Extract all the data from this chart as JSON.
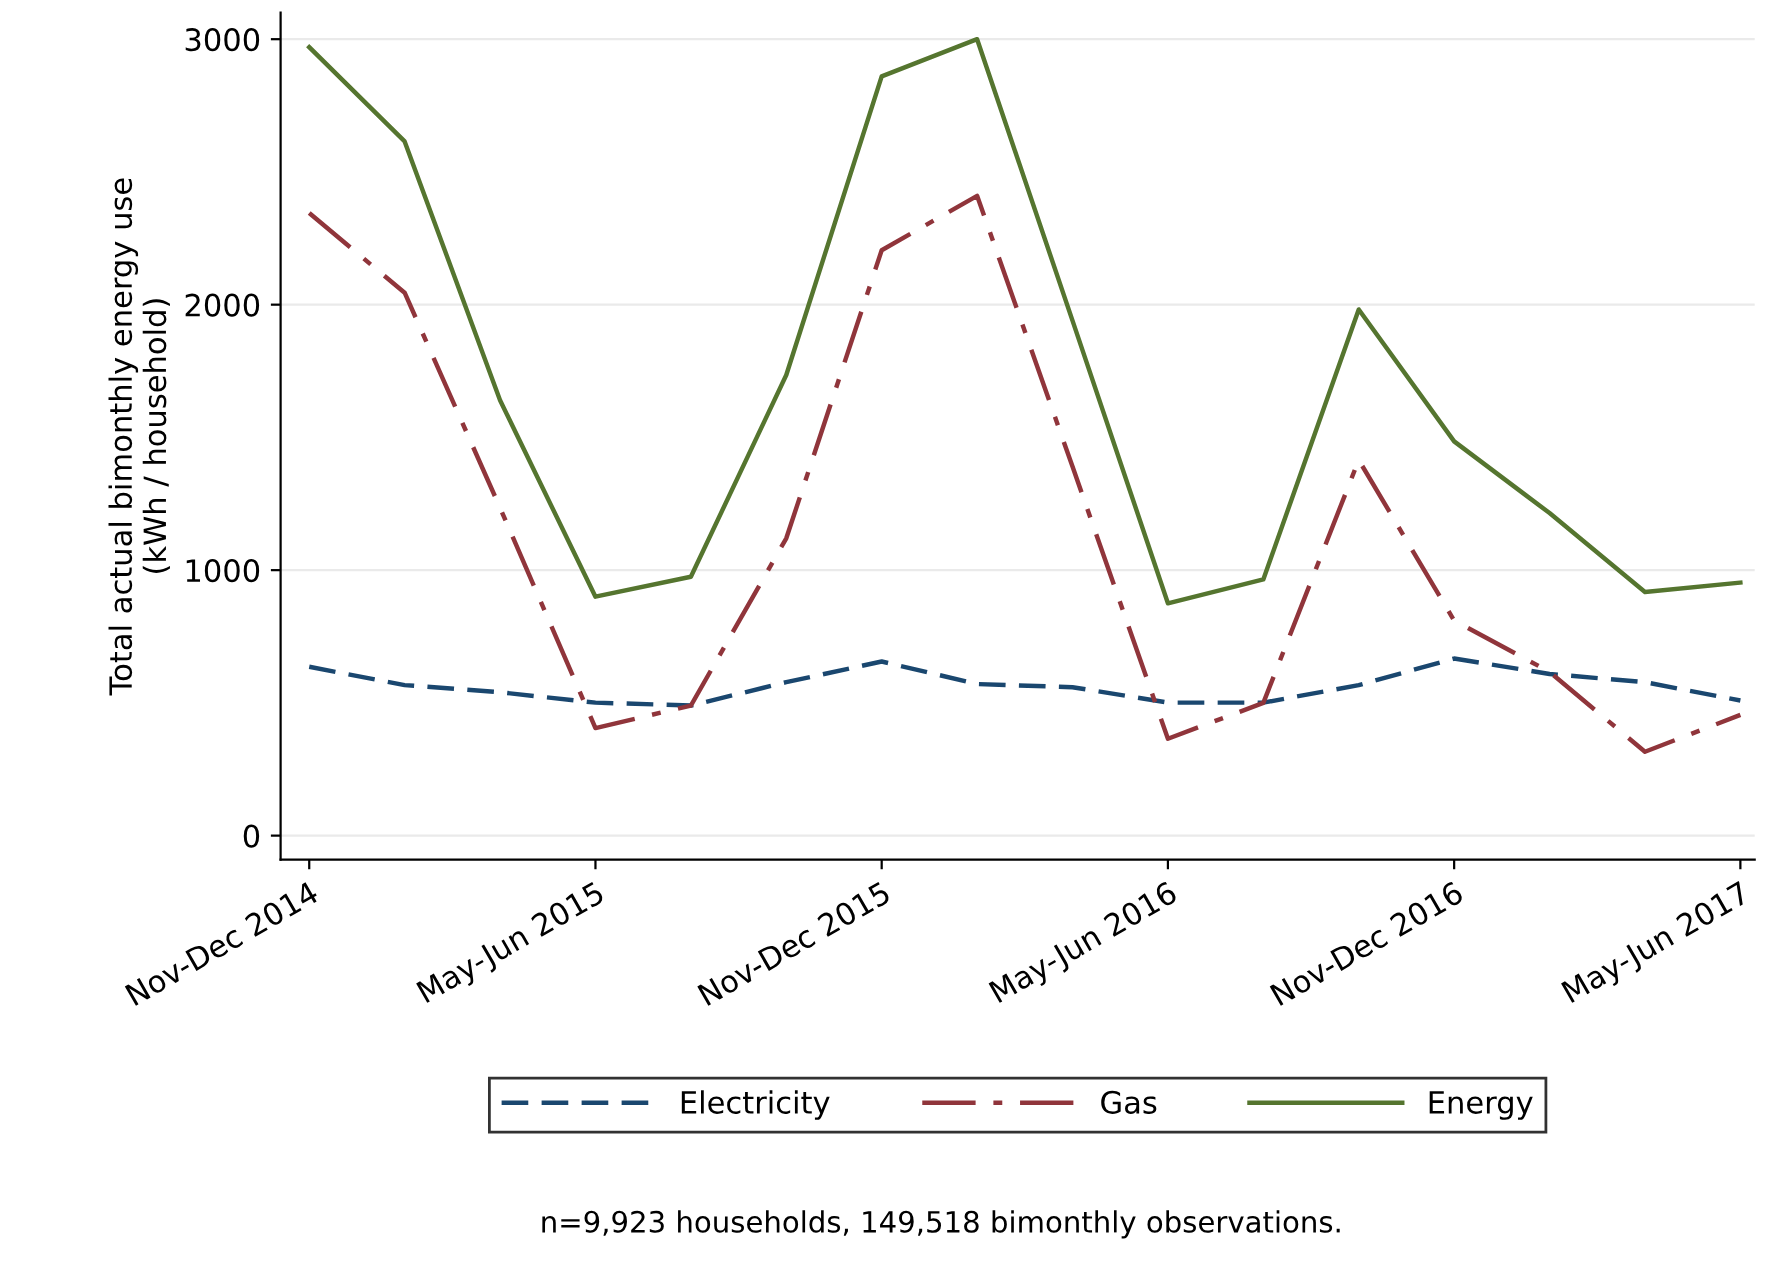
{
  "chart_data": {
    "type": "line",
    "ylabel": "Total actual bimonthly energy use\n(kWh / household)",
    "categories": [
      "Nov-Dec 2014",
      null,
      null,
      "May-Jun 2015",
      null,
      null,
      "Nov-Dec 2015",
      null,
      null,
      "May-Jun 2016",
      null,
      null,
      "Nov-Dec 2016",
      null,
      null,
      "May-Jun 2017"
    ],
    "series": [
      {
        "name": "Electricity",
        "color": "#1a476f",
        "line_style": "dashed",
        "values": [
          636,
          567,
          540,
          501,
          490,
          578,
          656,
          571,
          559,
          501,
          501,
          567,
          667,
          609,
          578,
          509
        ]
      },
      {
        "name": "Gas",
        "color": "#90353b",
        "line_style": "dashdot",
        "values": [
          2345,
          2045,
          1235,
          405,
          490,
          1120,
          2205,
          2410,
          1390,
          365,
          500,
          1415,
          810,
          617,
          316,
          455
        ]
      },
      {
        "name": "Energy",
        "color": "#55752f",
        "line_style": "solid",
        "values": [
          2970,
          2615,
          1640,
          900,
          975,
          1735,
          2860,
          3000,
          1940,
          875,
          965,
          1982,
          1485,
          1215,
          918,
          953
        ]
      }
    ],
    "ylim": [
      -90,
      3100
    ],
    "yticks": [
      0,
      1000,
      2000,
      3000
    ],
    "grid": "y",
    "legend": "bottom",
    "marker": "none",
    "annotations": [
      "n=9,923 households, 149,518 bimonthly observations."
    ]
  }
}
